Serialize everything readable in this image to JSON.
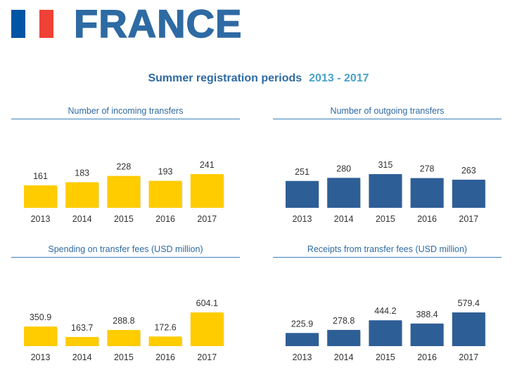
{
  "header": {
    "country": "FRANCE",
    "subtitle_main": "Summer registration periods",
    "subtitle_years": "2013 - 2017"
  },
  "colors": {
    "title": "#2e6aa3",
    "years": "#4aa3c9",
    "text": "#333333",
    "rule": "#3a7fb5",
    "yellow": "#ffcc00",
    "blue": "#2e5e96",
    "flag_blue": "#0055a4",
    "flag_white": "#ffffff",
    "flag_red": "#ef4135"
  },
  "chart_data": [
    {
      "id": "incoming",
      "type": "bar",
      "title": "Number of incoming transfers",
      "categories": [
        "2013",
        "2014",
        "2015",
        "2016",
        "2017"
      ],
      "values": [
        161,
        183,
        228,
        193,
        241
      ],
      "labels": [
        "161",
        "183",
        "228",
        "193",
        "241"
      ],
      "color": "yellow"
    },
    {
      "id": "outgoing",
      "type": "bar",
      "title": "Number of outgoing transfers",
      "categories": [
        "2013",
        "2014",
        "2015",
        "2016",
        "2017"
      ],
      "values": [
        251,
        280,
        315,
        278,
        263
      ],
      "labels": [
        "251",
        "280",
        "315",
        "278",
        "263"
      ],
      "color": "blue"
    },
    {
      "id": "spending",
      "type": "bar",
      "title": "Spending on transfer fees (USD million)",
      "categories": [
        "2013",
        "2014",
        "2015",
        "2016",
        "2017"
      ],
      "values": [
        350.9,
        163.7,
        288.8,
        172.6,
        604.1
      ],
      "labels": [
        "350.9",
        "163.7",
        "288.8",
        "172.6",
        "604.1"
      ],
      "color": "yellow"
    },
    {
      "id": "receipts",
      "type": "bar",
      "title": "Receipts from transfer fees (USD million)",
      "categories": [
        "2013",
        "2014",
        "2015",
        "2016",
        "2017"
      ],
      "values": [
        225.9,
        278.8,
        444.2,
        388.4,
        579.4
      ],
      "labels": [
        "225.9",
        "278.8",
        "444.2",
        "388.4",
        "579.4"
      ],
      "color": "blue"
    }
  ]
}
